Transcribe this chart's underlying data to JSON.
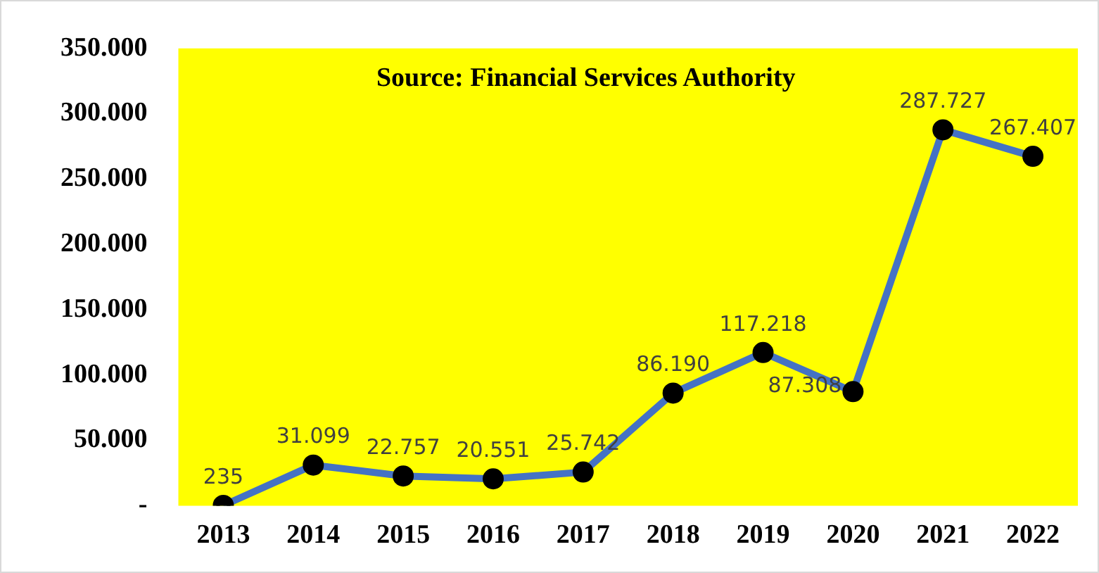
{
  "chart_data": {
    "type": "line",
    "categories": [
      "2013",
      "2014",
      "2015",
      "2016",
      "2017",
      "2018",
      "2019",
      "2020",
      "2021",
      "2022"
    ],
    "series": [
      {
        "color": "#4472c4",
        "values": [
          235,
          31099,
          22757,
          20551,
          25742,
          86190,
          117218,
          87308,
          287727,
          267407
        ],
        "value_labels": [
          "235",
          "31.099",
          "22.757",
          "20.551",
          "25.742",
          "86.190",
          "117.218",
          "87.308",
          "287.727",
          "267.407"
        ]
      }
    ],
    "ylim": [
      0,
      350000
    ],
    "yticks": [
      {
        "value": 0,
        "label": "-"
      },
      {
        "value": 50000,
        "label": "50.000"
      },
      {
        "value": 100000,
        "label": "100.000"
      },
      {
        "value": 150000,
        "label": "150.000"
      },
      {
        "value": 200000,
        "label": "200.000"
      },
      {
        "value": 250000,
        "label": "250.000"
      },
      {
        "value": 300000,
        "label": "300.000"
      },
      {
        "value": 350000,
        "label": "350.000"
      }
    ],
    "annotations": [
      "Source: Financial Services Authority"
    ],
    "grid": false,
    "legend": false,
    "marker": "circle",
    "line_style": "solid"
  }
}
